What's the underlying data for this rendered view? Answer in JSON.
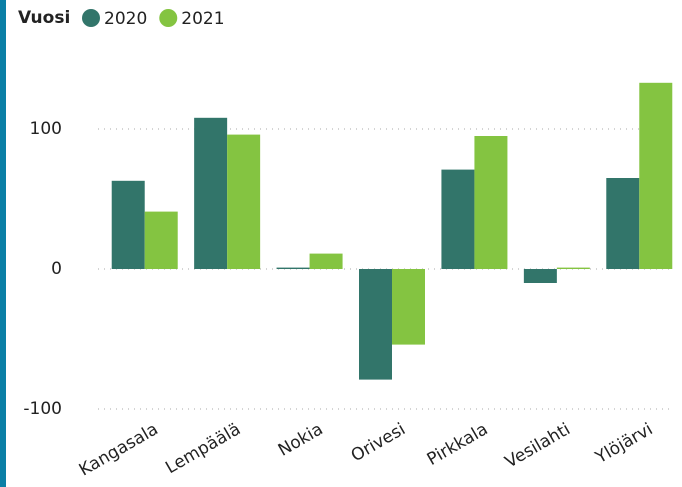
{
  "chart_data": {
    "type": "bar",
    "legend_title": "Vuosi",
    "categories": [
      "Kangasala",
      "Lempäälä",
      "Nokia",
      "Orivesi",
      "Pirkkala",
      "Vesilahti",
      "Ylöjärvi"
    ],
    "series": [
      {
        "name": "2020",
        "color": "#32756a",
        "values": [
          63,
          108,
          1,
          -79,
          71,
          -10,
          65
        ]
      },
      {
        "name": "2021",
        "color": "#84c441",
        "values": [
          41,
          96,
          11,
          -54,
          95,
          1,
          133
        ]
      }
    ],
    "ylim": [
      -100,
      150
    ],
    "yticks": [
      -100,
      0,
      100
    ],
    "grid": true
  }
}
